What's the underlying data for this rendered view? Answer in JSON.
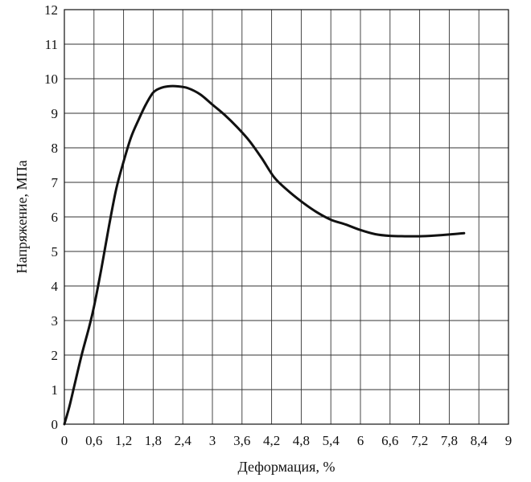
{
  "chart_data": {
    "type": "line",
    "title": "",
    "xlabel": "Деформация, %",
    "ylabel": "Напряжение, МПа",
    "xlim": [
      0,
      9
    ],
    "ylim": [
      0,
      12
    ],
    "grid": true,
    "x_ticks": [
      0,
      0.6,
      1.2,
      1.8,
      2.4,
      3,
      3.6,
      4.2,
      4.8,
      5.4,
      6,
      6.6,
      7.2,
      7.8,
      8.4,
      9
    ],
    "x_tick_labels": [
      "0",
      "0,6",
      "1,2",
      "1,8",
      "2,4",
      "3",
      "3,6",
      "4,2",
      "4,8",
      "5,4",
      "6",
      "6,6",
      "7,2",
      "7,8",
      "8,4",
      "9"
    ],
    "y_ticks": [
      0,
      1,
      2,
      3,
      4,
      5,
      6,
      7,
      8,
      9,
      10,
      11,
      12
    ],
    "y_tick_labels": [
      "0",
      "1",
      "2",
      "3",
      "4",
      "5",
      "6",
      "7",
      "8",
      "9",
      "10",
      "11",
      "12"
    ],
    "series": [
      {
        "color": "#111111",
        "x": [
          0,
          0.1,
          0.2,
          0.35,
          0.5,
          0.6,
          0.75,
          0.9,
          1.05,
          1.2,
          1.35,
          1.5,
          1.65,
          1.8,
          1.95,
          2.1,
          2.3,
          2.5,
          2.75,
          3.0,
          3.25,
          3.5,
          3.75,
          4.0,
          4.25,
          4.5,
          4.8,
          5.1,
          5.4,
          5.7,
          6.0,
          6.3,
          6.6,
          6.9,
          7.2,
          7.5,
          7.8,
          8.1
        ],
        "y": [
          0,
          0.5,
          1.1,
          2.0,
          2.8,
          3.4,
          4.5,
          5.7,
          6.8,
          7.6,
          8.3,
          8.8,
          9.25,
          9.6,
          9.73,
          9.78,
          9.78,
          9.73,
          9.55,
          9.25,
          8.95,
          8.6,
          8.2,
          7.7,
          7.15,
          6.8,
          6.45,
          6.15,
          5.92,
          5.78,
          5.62,
          5.5,
          5.45,
          5.44,
          5.44,
          5.46,
          5.49,
          5.53
        ]
      }
    ]
  }
}
